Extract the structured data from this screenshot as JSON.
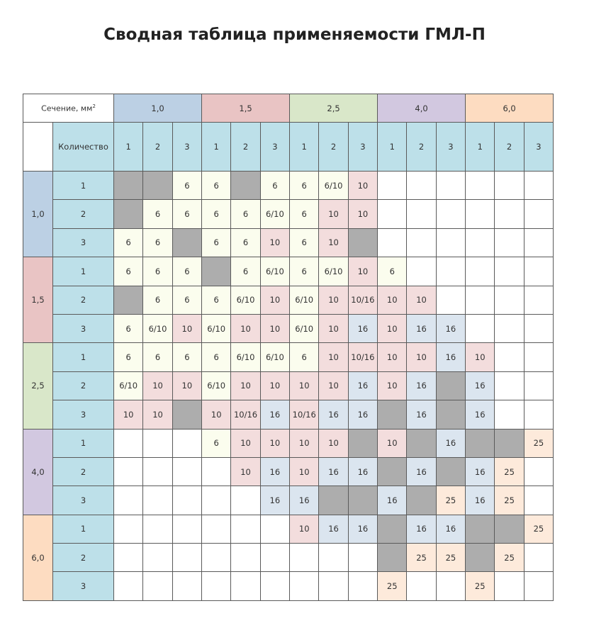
{
  "title": "Сводная таблица применяемости ГМЛ-П",
  "header": {
    "section_label": "Сечение, мм",
    "section_sup": "2",
    "quantity_label": "Количество",
    "sections": [
      {
        "label": "1,0",
        "color": "#bcd0e4"
      },
      {
        "label": "1,5",
        "color": "#e9c4c4"
      },
      {
        "label": "2,5",
        "color": "#d9e7c9"
      },
      {
        "label": "4,0",
        "color": "#d2c8e0"
      },
      {
        "label": "6,0",
        "color": "#fddcc1"
      }
    ],
    "counts": [
      "1",
      "2",
      "3"
    ]
  },
  "legend_colors": {
    "gray": "#adadad",
    "6": "#fbfdee",
    "10": "#f3dddd",
    "16": "#dbe5ef",
    "25": "#fdeadb"
  },
  "rows": [
    [
      "X",
      "X",
      "6",
      "6",
      "X",
      "6",
      "6",
      "6/10",
      "10",
      "",
      "",
      "",
      "",
      "",
      ""
    ],
    [
      "X",
      "6",
      "6",
      "6",
      "6",
      "6/10",
      "6",
      "10",
      "10",
      "",
      "",
      "",
      "",
      "",
      ""
    ],
    [
      "6",
      "6",
      "X",
      "6",
      "6",
      "10",
      "6",
      "10",
      "X",
      "",
      "",
      "",
      "",
      "",
      ""
    ],
    [
      "6",
      "6",
      "6",
      "X",
      "6",
      "6/10",
      "6",
      "6/10",
      "10",
      "6",
      "",
      "",
      "",
      "",
      ""
    ],
    [
      "X",
      "6",
      "6",
      "6",
      "6/10",
      "10",
      "6/10",
      "10",
      "10/16",
      "10",
      "10",
      "",
      "",
      "",
      ""
    ],
    [
      "6",
      "6/10",
      "10",
      "6/10",
      "10",
      "10",
      "6/10",
      "10",
      "16",
      "10",
      "16",
      "16",
      "",
      "",
      ""
    ],
    [
      "6",
      "6",
      "6",
      "6",
      "6/10",
      "6/10",
      "6",
      "10",
      "10/16",
      "10",
      "10",
      "16",
      "10",
      "",
      ""
    ],
    [
      "6/10",
      "10",
      "10",
      "6/10",
      "10",
      "10",
      "10",
      "10",
      "16",
      "10",
      "16",
      "X",
      "16",
      "",
      ""
    ],
    [
      "10",
      "10",
      "X",
      "10",
      "10/16",
      "16",
      "10/16",
      "16",
      "16",
      "X",
      "16",
      "X",
      "16",
      "",
      ""
    ],
    [
      "",
      "",
      "",
      "6",
      "10",
      "10",
      "10",
      "10",
      "X",
      "10",
      "X",
      "16",
      "X",
      "X",
      "25"
    ],
    [
      "",
      "",
      "",
      "",
      "10",
      "16",
      "10",
      "16",
      "16",
      "X",
      "16",
      "X",
      "16",
      "25",
      ""
    ],
    [
      "",
      "",
      "",
      "",
      "",
      "16",
      "16",
      "X",
      "X",
      "16",
      "X",
      "25",
      "16",
      "25",
      ""
    ],
    [
      "",
      "",
      "",
      "",
      "",
      "",
      "10",
      "16",
      "16",
      "X",
      "16",
      "16",
      "X",
      "X",
      "25"
    ],
    [
      "",
      "",
      "",
      "",
      "",
      "",
      "",
      "",
      "",
      "X",
      "25",
      "25",
      "X",
      "25",
      ""
    ],
    [
      "",
      "",
      "",
      "",
      "",
      "",
      "",
      "",
      "",
      "25",
      "",
      "",
      "25",
      "",
      ""
    ]
  ]
}
